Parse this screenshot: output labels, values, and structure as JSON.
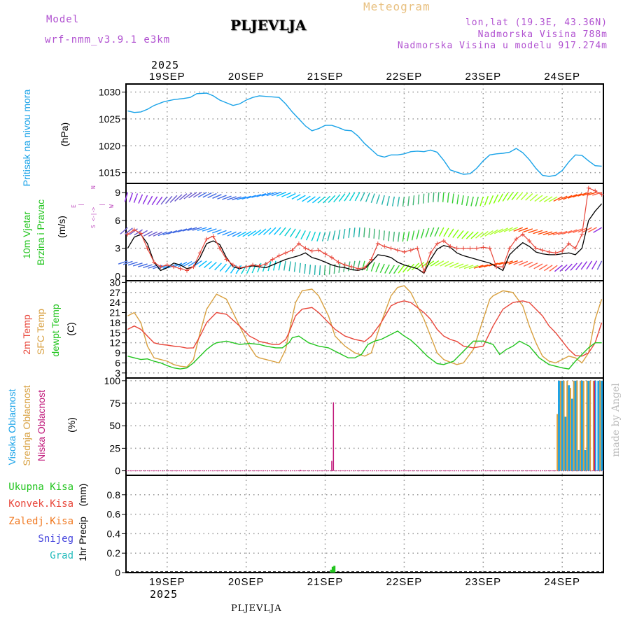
{
  "header": {
    "model_label": "Model",
    "model_name": "wrf-nmm_v3.9.1  e3km",
    "station": "PLJEVLJA",
    "meteogram_title": "Meteogram",
    "coords": "lon,lat (19.3E, 43.36N)",
    "elevation": "Nadmorska Visina 788m",
    "model_elevation": "Nadmorska Visina u modelu 917.274m",
    "watermark": "made by Angel",
    "footer_station": "PLJEVLJA"
  },
  "time_axis": {
    "year": "2025",
    "day_labels": [
      "19SEP",
      "20SEP",
      "21SEP",
      "22SEP",
      "23SEP",
      "24SEP"
    ],
    "start_hour": 0,
    "end_hour": 144
  },
  "colors": {
    "pressure": "#1aa3e8",
    "temp2m": "#e8463a",
    "sfc_temp": "#d8a040",
    "dewpoint": "#22c41e",
    "high_cloud": "#1aa3e8",
    "mid_cloud": "#d8a040",
    "low_cloud": "#c0187a",
    "precip_total": "#22c41e",
    "precip_conv": "#e8463a",
    "precip_frz": "#f07820",
    "snow": "#4444dd",
    "grad": "#22bbbb",
    "wind_speed": "#000000",
    "gust": "#e8463a",
    "header_purple": "#b050d0",
    "title_orange": "#e8c080"
  },
  "chart_data": [
    {
      "type": "line",
      "panel": "pressure",
      "ylabel_main": "Pritisak na nivou mora",
      "unit": "(hPa)",
      "ylim": [
        1013,
        1031.5
      ],
      "yticks": [
        1015,
        1020,
        1025,
        1030
      ],
      "series": [
        {
          "name": "Pritisak na nivou mora",
          "x": [
            -12,
            -10,
            -8,
            -6,
            -4,
            -1,
            2,
            5,
            7,
            9,
            12,
            14,
            16,
            18,
            20,
            22,
            24,
            26,
            28,
            30,
            32,
            34,
            36,
            38,
            40,
            42,
            44,
            46,
            48,
            50,
            52,
            54,
            56,
            58,
            60,
            62,
            64,
            66,
            68,
            70,
            72,
            74,
            76,
            78,
            80,
            82,
            84,
            86,
            88,
            90,
            92,
            94,
            96,
            98,
            100,
            102,
            104,
            106,
            108,
            110,
            112,
            114,
            116,
            118,
            120,
            122,
            124,
            126,
            128,
            130,
            132
          ],
          "y": [
            1026.5,
            1026.2,
            1026.3,
            1026.8,
            1027.5,
            1028.2,
            1028.6,
            1028.8,
            1029.0,
            1029.7,
            1029.8,
            1029.3,
            1028.5,
            1028.0,
            1027.5,
            1027.8,
            1028.5,
            1029.0,
            1029.3,
            1029.2,
            1029.1,
            1029.0,
            1027.8,
            1026.3,
            1025.0,
            1023.7,
            1022.8,
            1023.2,
            1023.8,
            1023.8,
            1023.4,
            1022.9,
            1022.8,
            1021.8,
            1020.4,
            1019.3,
            1018.2,
            1017.9,
            1018.3,
            1018.3,
            1018.5,
            1018.9,
            1019.0,
            1018.9,
            1019.2,
            1018.8,
            1017.3,
            1015.5,
            1015.1,
            1014.7,
            1014.8,
            1015.8,
            1017.2,
            1018.3,
            1018.5,
            1018.6,
            1018.8,
            1019.5,
            1018.7,
            1017.4,
            1015.8,
            1014.5,
            1014.3,
            1014.5,
            1015.4,
            1017.0,
            1018.3,
            1018.2,
            1017.2,
            1016.3,
            1016.2
          ]
        }
      ]
    },
    {
      "type": "line",
      "panel": "wind",
      "ylabel_main": "10m Vjetar",
      "ylabel_sub": "Brzina i Pravac",
      "unit": "(m/s)",
      "compass": {
        "n": "N",
        "s": "S",
        "w": "W",
        "e": "E"
      },
      "ylim": [
        -0.5,
        10
      ],
      "yticks": [
        0,
        3,
        6,
        9
      ],
      "series": [
        {
          "name": "wind speed",
          "x": [
            -12,
            -10,
            -8,
            -6,
            -4,
            -2,
            0,
            2,
            4,
            6,
            8,
            10,
            12,
            14,
            16,
            18,
            20,
            22,
            24,
            26,
            28,
            30,
            32,
            34,
            36,
            38,
            40,
            42,
            44,
            46,
            48,
            50,
            52,
            54,
            56,
            58,
            60,
            62,
            64,
            66,
            68,
            70,
            72,
            74,
            76,
            78,
            80,
            82,
            84,
            86,
            88,
            90,
            92,
            94,
            96,
            98,
            100,
            102,
            104,
            106,
            108,
            110,
            112,
            114,
            116,
            118,
            120,
            122,
            124,
            126,
            128,
            130,
            132
          ],
          "y": [
            3.0,
            4.2,
            4.5,
            3.5,
            1.5,
            0.6,
            0.9,
            1.4,
            1.2,
            0.8,
            1.0,
            2.0,
            3.5,
            3.8,
            3.4,
            2.0,
            1.0,
            0.8,
            1.0,
            1.1,
            1.0,
            0.9,
            1.2,
            1.5,
            1.8,
            2.0,
            2.2,
            2.5,
            2.0,
            1.8,
            1.5,
            1.2,
            1.0,
            0.9,
            0.7,
            0.6,
            0.8,
            1.5,
            2.3,
            2.2,
            2.0,
            1.5,
            1.2,
            1.0,
            0.8,
            0.3,
            1.8,
            2.9,
            3.3,
            3.1,
            2.5,
            2.2,
            2.0,
            1.8,
            1.6,
            1.4,
            1.0,
            0.6,
            2.3,
            3.0,
            3.6,
            3.2,
            2.6,
            2.4,
            2.3,
            2.3,
            2.4,
            2.5,
            2.3,
            3.0,
            6.0,
            7.0,
            7.8
          ]
        },
        {
          "name": "gust",
          "x": [
            -12,
            -10,
            -8,
            -6,
            -4,
            -2,
            0,
            2,
            4,
            6,
            8,
            10,
            12,
            14,
            16,
            18,
            20,
            22,
            24,
            26,
            28,
            30,
            32,
            34,
            36,
            38,
            40,
            42,
            44,
            46,
            48,
            50,
            52,
            54,
            56,
            58,
            60,
            62,
            64,
            66,
            68,
            70,
            72,
            74,
            76,
            78,
            80,
            82,
            84,
            86,
            88,
            90,
            92,
            94,
            96,
            98,
            100,
            102,
            104,
            106,
            108,
            110,
            112,
            114,
            116,
            118,
            120,
            122,
            124,
            126,
            128,
            130,
            132
          ],
          "y": [
            4.5,
            5.0,
            4.6,
            3.0,
            1.5,
            1.0,
            1.2,
            1.0,
            0.8,
            0.6,
            1.0,
            2.5,
            4.0,
            4.3,
            3.0,
            1.8,
            1.2,
            0.9,
            1.0,
            1.2,
            1.1,
            1.3,
            1.8,
            2.2,
            2.5,
            2.8,
            3.5,
            3.0,
            2.7,
            2.8,
            2.4,
            2.0,
            1.5,
            1.2,
            1.0,
            0.8,
            0.9,
            1.8,
            3.5,
            3.2,
            3.0,
            2.8,
            2.6,
            2.8,
            3.0,
            0.5,
            2.5,
            3.5,
            3.8,
            3.2,
            3.0,
            3.0,
            3.0,
            3.0,
            3.1,
            3.0,
            1.0,
            1.0,
            3.0,
            4.0,
            4.5,
            3.8,
            3.0,
            2.8,
            2.6,
            2.5,
            2.7,
            3.5,
            3.0,
            4.5,
            9.5,
            9.2,
            8.8
          ]
        }
      ]
    },
    {
      "type": "line",
      "panel": "temperature",
      "ylabel_a": "2m Temp",
      "ylabel_b": "SFC Temp",
      "ylabel_c": "dewpt Temp",
      "unit": "(C)",
      "ylim": [
        1.5,
        30.5
      ],
      "yticks": [
        3,
        6,
        9,
        12,
        15,
        18,
        21,
        24,
        27,
        30
      ],
      "series": [
        {
          "name": "2m Temp",
          "x": [
            -12,
            -10,
            -8,
            -6,
            -4,
            -2,
            0,
            2,
            4,
            6,
            8,
            10,
            12,
            14,
            15,
            18,
            22,
            25,
            27,
            28,
            30,
            32,
            34,
            36,
            37,
            39,
            41,
            44,
            46,
            49,
            51,
            54,
            57,
            60,
            62,
            65,
            68,
            70,
            72,
            74,
            78,
            80,
            82,
            84,
            86,
            88,
            90,
            93,
            96,
            98,
            99,
            102,
            105,
            108,
            110,
            112,
            114,
            116,
            118,
            122,
            124,
            126,
            128,
            130,
            132
          ],
          "y": [
            16,
            17,
            16,
            14,
            12,
            11.5,
            11.3,
            11,
            10.8,
            10.4,
            10.5,
            14,
            18,
            20,
            21,
            20.5,
            17,
            14,
            13,
            12.4,
            12,
            11.5,
            11.5,
            13,
            15,
            20,
            22,
            22.5,
            21,
            18,
            16,
            14,
            13,
            12.4,
            14,
            18,
            23,
            24,
            24.5,
            24,
            21,
            19,
            16,
            14,
            13,
            12.4,
            11,
            10.5,
            11,
            15,
            17,
            22,
            24,
            24.5,
            24,
            22,
            20,
            17,
            15,
            10,
            8.2,
            8,
            9,
            12,
            18
          ]
        },
        {
          "name": "SFC Temp",
          "x": [
            -12,
            -10,
            -8,
            -6,
            -4,
            -2,
            0,
            2,
            4,
            6,
            8,
            10,
            12,
            14,
            15,
            18,
            22,
            25,
            27,
            28,
            30,
            32,
            34,
            36,
            37,
            39,
            41,
            44,
            46,
            49,
            51,
            54,
            57,
            60,
            62,
            65,
            68,
            70,
            72,
            74,
            78,
            80,
            82,
            84,
            86,
            88,
            90,
            93,
            96,
            98,
            99,
            102,
            105,
            108,
            110,
            112,
            114,
            116,
            118,
            122,
            124,
            126,
            128,
            130,
            132
          ],
          "y": [
            20,
            21,
            18,
            11,
            7.5,
            7,
            6.5,
            5.5,
            5,
            4.8,
            7,
            15,
            22,
            25,
            26.5,
            25,
            17,
            11,
            8,
            7.5,
            7,
            6.5,
            6,
            10,
            15,
            24,
            27.5,
            28,
            26,
            20,
            14,
            11,
            9,
            8,
            9,
            18,
            26,
            28.5,
            29,
            27,
            19,
            14,
            9,
            7,
            6.2,
            5.5,
            6,
            10,
            19,
            25,
            26,
            27.5,
            27,
            23,
            17,
            12,
            8,
            6.5,
            6,
            8,
            7.5,
            6,
            9,
            19,
            25
          ]
        },
        {
          "name": "dewpt Temp",
          "x": [
            -12,
            -10,
            -8,
            -6,
            -4,
            -2,
            0,
            2,
            4,
            6,
            8,
            10,
            12,
            14,
            15,
            18,
            20,
            22,
            25,
            28,
            30,
            33,
            35,
            37,
            38,
            40,
            43,
            46,
            49,
            52,
            55,
            57,
            59,
            61,
            63,
            65,
            67,
            70,
            72,
            74,
            76,
            79,
            81,
            82,
            84,
            87,
            90,
            93,
            96,
            99,
            101,
            103,
            105,
            107,
            110,
            113,
            116,
            118,
            120,
            122,
            124,
            126,
            128,
            130,
            132
          ],
          "y": [
            8,
            7.5,
            7,
            7.2,
            6.5,
            6,
            5.2,
            4.5,
            4.2,
            4.5,
            6,
            8,
            10,
            11.5,
            12,
            12.5,
            12,
            11.5,
            11.8,
            11.5,
            11,
            10.5,
            10.5,
            12,
            13.5,
            14,
            12,
            11,
            10.5,
            9,
            7.5,
            7.5,
            8.5,
            11.5,
            12.5,
            13,
            14,
            15.5,
            14,
            12.8,
            11,
            8,
            6.5,
            5.8,
            5.5,
            6.5,
            9.5,
            12.5,
            12.5,
            11.5,
            8.5,
            10,
            11,
            12.5,
            11,
            7.5,
            5.5,
            5,
            4.5,
            4.2,
            6.5,
            8.5,
            10.5,
            12,
            12
          ]
        }
      ]
    },
    {
      "type": "bar",
      "panel": "clouds",
      "ylabel_a": "Visoka Oblacnost",
      "ylabel_b": "Srednja Oblacnost",
      "ylabel_c": "Niska Oblacnost",
      "unit": "(%)",
      "ylim": [
        -5,
        103
      ],
      "yticks": [
        0,
        25,
        50,
        75,
        100
      ],
      "series": [
        {
          "name": "Visoka Oblacnost",
          "x": [
            119,
            120,
            121,
            122,
            123,
            124,
            125,
            126,
            127,
            128,
            130,
            131,
            132
          ],
          "y": [
            100,
            100,
            60,
            95,
            80,
            100,
            23,
            100,
            23,
            100,
            100,
            100,
            100
          ]
        },
        {
          "name": "Srednja Oblacnost",
          "x": [
            118.5,
            119.5,
            120.5,
            121.5,
            122.5,
            123.5,
            124.5,
            125.5,
            126.5,
            127.5,
            128.5,
            129.5,
            131.5
          ],
          "y": [
            63,
            100,
            100,
            100,
            92,
            100,
            100,
            100,
            100,
            100,
            100,
            100,
            100
          ]
        },
        {
          "name": "Niska Oblacnost",
          "x": [
            40.5,
            50,
            50.5,
            129.8
          ],
          "y": [
            1,
            11,
            76,
            100
          ]
        }
      ]
    },
    {
      "type": "bar",
      "panel": "precip",
      "ylabel_main": "1hr Precip",
      "unit": "(mm)",
      "legend": [
        "Ukupna  Kisa",
        "Konvek.Kisa",
        "Zaledj.Kisa",
        "Snijeg",
        "Grad"
      ],
      "ylim": [
        0,
        1.0
      ],
      "yticks": [
        0,
        0.2,
        0.4,
        0.6,
        0.8
      ],
      "tick_labels": [
        "0",
        "0.2",
        "0.4",
        "0.6",
        "0.8"
      ],
      "series": [
        {
          "name": "Ukupna  Kisa",
          "x": [
            49.8,
            50.3,
            50.8
          ],
          "y": [
            0.03,
            0.06,
            0.07
          ]
        }
      ]
    }
  ]
}
